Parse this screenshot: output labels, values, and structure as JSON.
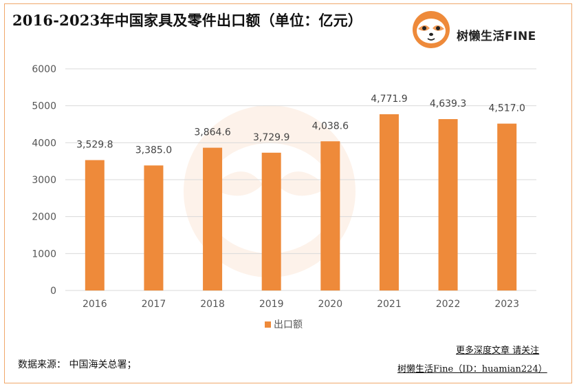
{
  "header": {
    "title": "2016-2023年中国家具及零件出口额（单位：亿元）",
    "brand": "树懒生活FINE"
  },
  "chart_data": {
    "type": "bar",
    "categories": [
      "2016",
      "2017",
      "2018",
      "2019",
      "2020",
      "2021",
      "2022",
      "2023"
    ],
    "series": [
      {
        "name": "出口额",
        "values": [
          3529.8,
          3385.0,
          3864.6,
          3729.9,
          4038.6,
          4771.9,
          4639.3,
          4517.0
        ],
        "labels": [
          "3,529.8",
          "3,385.0",
          "3,864.6",
          "3,729.9",
          "4,038.6",
          "4,771.9",
          "4,639.3",
          "4,517.0"
        ],
        "color": "#ee8a3a"
      }
    ],
    "title": "2016-2023年中国家具及零件出口额（单位：亿元）",
    "xlabel": "",
    "ylabel": "",
    "ylim": [
      0,
      6000
    ],
    "yticks": [
      "0",
      "1000",
      "2000",
      "3000",
      "4000",
      "5000",
      "6000"
    ],
    "grid": true,
    "legend_position": "bottom"
  },
  "footer": {
    "source": "数据来源： 中国海关总署；",
    "promo_line1": "更多深度文章 请关注",
    "promo_line2": "树懒生活Fine（ID：huamian224）"
  },
  "colors": {
    "bar": "#ee8a3a",
    "frame": "#f0a76a",
    "grid": "#d9d9d9"
  },
  "icons": {
    "logo": "sloth-face-icon"
  }
}
